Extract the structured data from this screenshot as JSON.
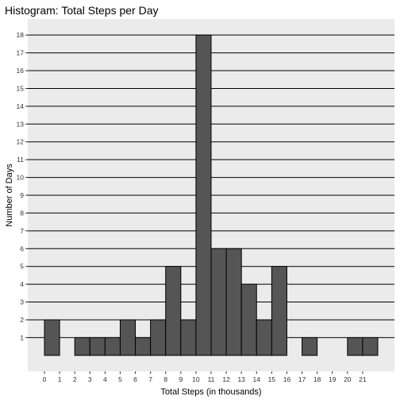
{
  "chart_data": {
    "type": "bar",
    "title": "Histogram: Total Steps per Day",
    "xlabel": "Total Steps (in thousands)",
    "ylabel": "Number of Days",
    "bin_width": 1,
    "bins": [
      {
        "start": 0,
        "end": 1,
        "count": 2
      },
      {
        "start": 1,
        "end": 2,
        "count": 0
      },
      {
        "start": 2,
        "end": 3,
        "count": 1
      },
      {
        "start": 3,
        "end": 4,
        "count": 1
      },
      {
        "start": 4,
        "end": 5,
        "count": 1
      },
      {
        "start": 5,
        "end": 6,
        "count": 2
      },
      {
        "start": 6,
        "end": 7,
        "count": 1
      },
      {
        "start": 7,
        "end": 8,
        "count": 2
      },
      {
        "start": 8,
        "end": 9,
        "count": 5
      },
      {
        "start": 9,
        "end": 10,
        "count": 2
      },
      {
        "start": 10,
        "end": 11,
        "count": 18
      },
      {
        "start": 11,
        "end": 12,
        "count": 6
      },
      {
        "start": 12,
        "end": 13,
        "count": 6
      },
      {
        "start": 13,
        "end": 14,
        "count": 4
      },
      {
        "start": 14,
        "end": 15,
        "count": 2
      },
      {
        "start": 15,
        "end": 16,
        "count": 5
      },
      {
        "start": 16,
        "end": 17,
        "count": 0
      },
      {
        "start": 17,
        "end": 18,
        "count": 1
      },
      {
        "start": 18,
        "end": 19,
        "count": 0
      },
      {
        "start": 19,
        "end": 20,
        "count": 0
      },
      {
        "start": 20,
        "end": 21,
        "count": 1
      },
      {
        "start": 21,
        "end": 22,
        "count": 1
      }
    ],
    "x_ticks": [
      0,
      1,
      2,
      3,
      4,
      5,
      6,
      7,
      8,
      9,
      10,
      11,
      12,
      13,
      14,
      15,
      16,
      17,
      18,
      19,
      20,
      21
    ],
    "y_ticks": [
      1,
      2,
      3,
      4,
      5,
      6,
      7,
      8,
      9,
      10,
      11,
      12,
      13,
      14,
      15,
      16,
      17,
      18
    ],
    "xlim": [
      -1.1,
      23.1
    ],
    "ylim": [
      -0.9,
      18.9
    ],
    "grid": true,
    "grid_color": "#000000",
    "panel_background": "#ebebeb",
    "bar_fill": "#555555",
    "bar_outline": "#000000"
  }
}
